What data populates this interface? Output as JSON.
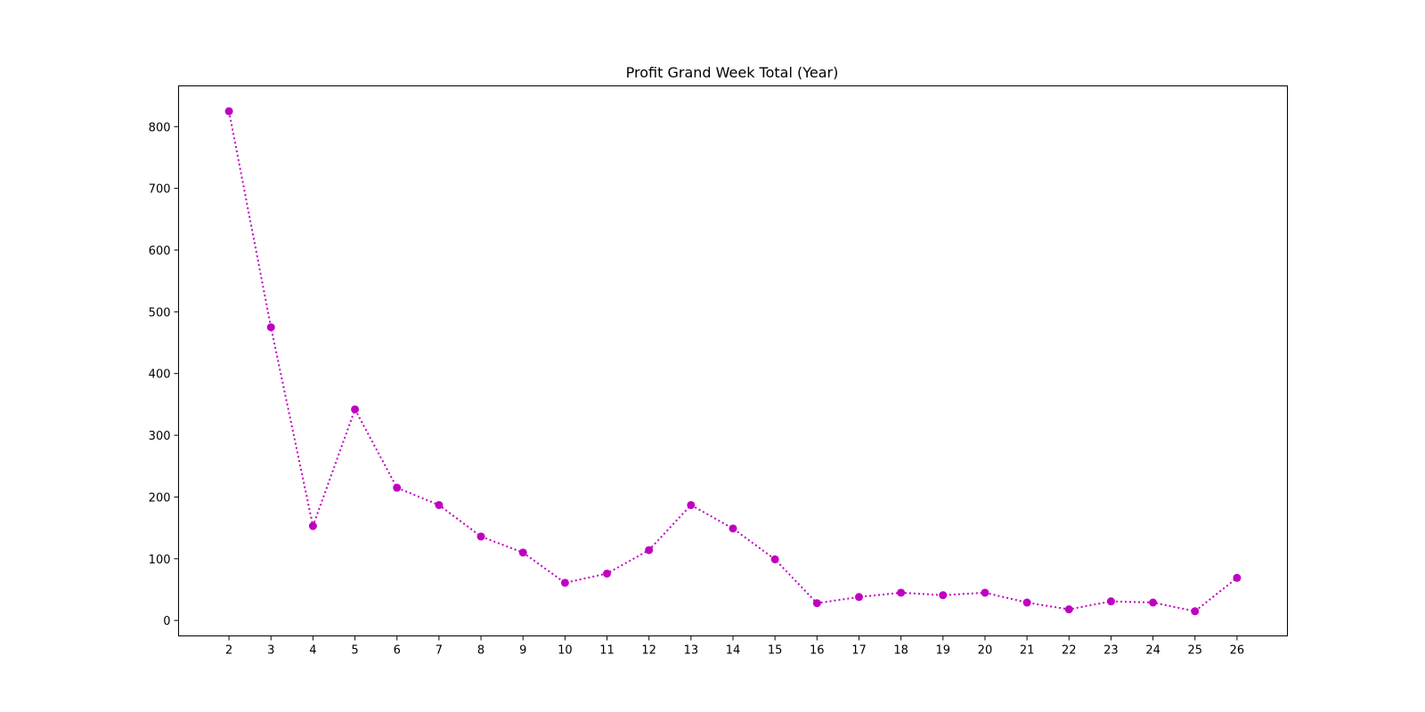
{
  "chart_data": {
    "type": "line",
    "title": "Profit Grand Week Total (Year)",
    "xlabel": "",
    "ylabel": "",
    "x": [
      2,
      3,
      4,
      5,
      6,
      7,
      8,
      9,
      10,
      11,
      12,
      13,
      14,
      15,
      16,
      17,
      18,
      19,
      20,
      21,
      22,
      23,
      24,
      25,
      26
    ],
    "y": [
      825,
      475,
      153,
      342,
      215,
      187,
      136,
      110,
      61,
      76,
      114,
      187,
      149,
      99,
      28,
      38,
      45,
      41,
      45,
      29,
      18,
      31,
      29,
      15,
      69
    ],
    "xlim": [
      0.8,
      27.2
    ],
    "ylim": [
      -25,
      866
    ],
    "yticks": [
      0,
      100,
      200,
      300,
      400,
      500,
      600,
      700,
      800
    ],
    "grid": false,
    "legend": "none",
    "line_style": "dotted",
    "marker": "circle",
    "color": "#c000c0"
  }
}
